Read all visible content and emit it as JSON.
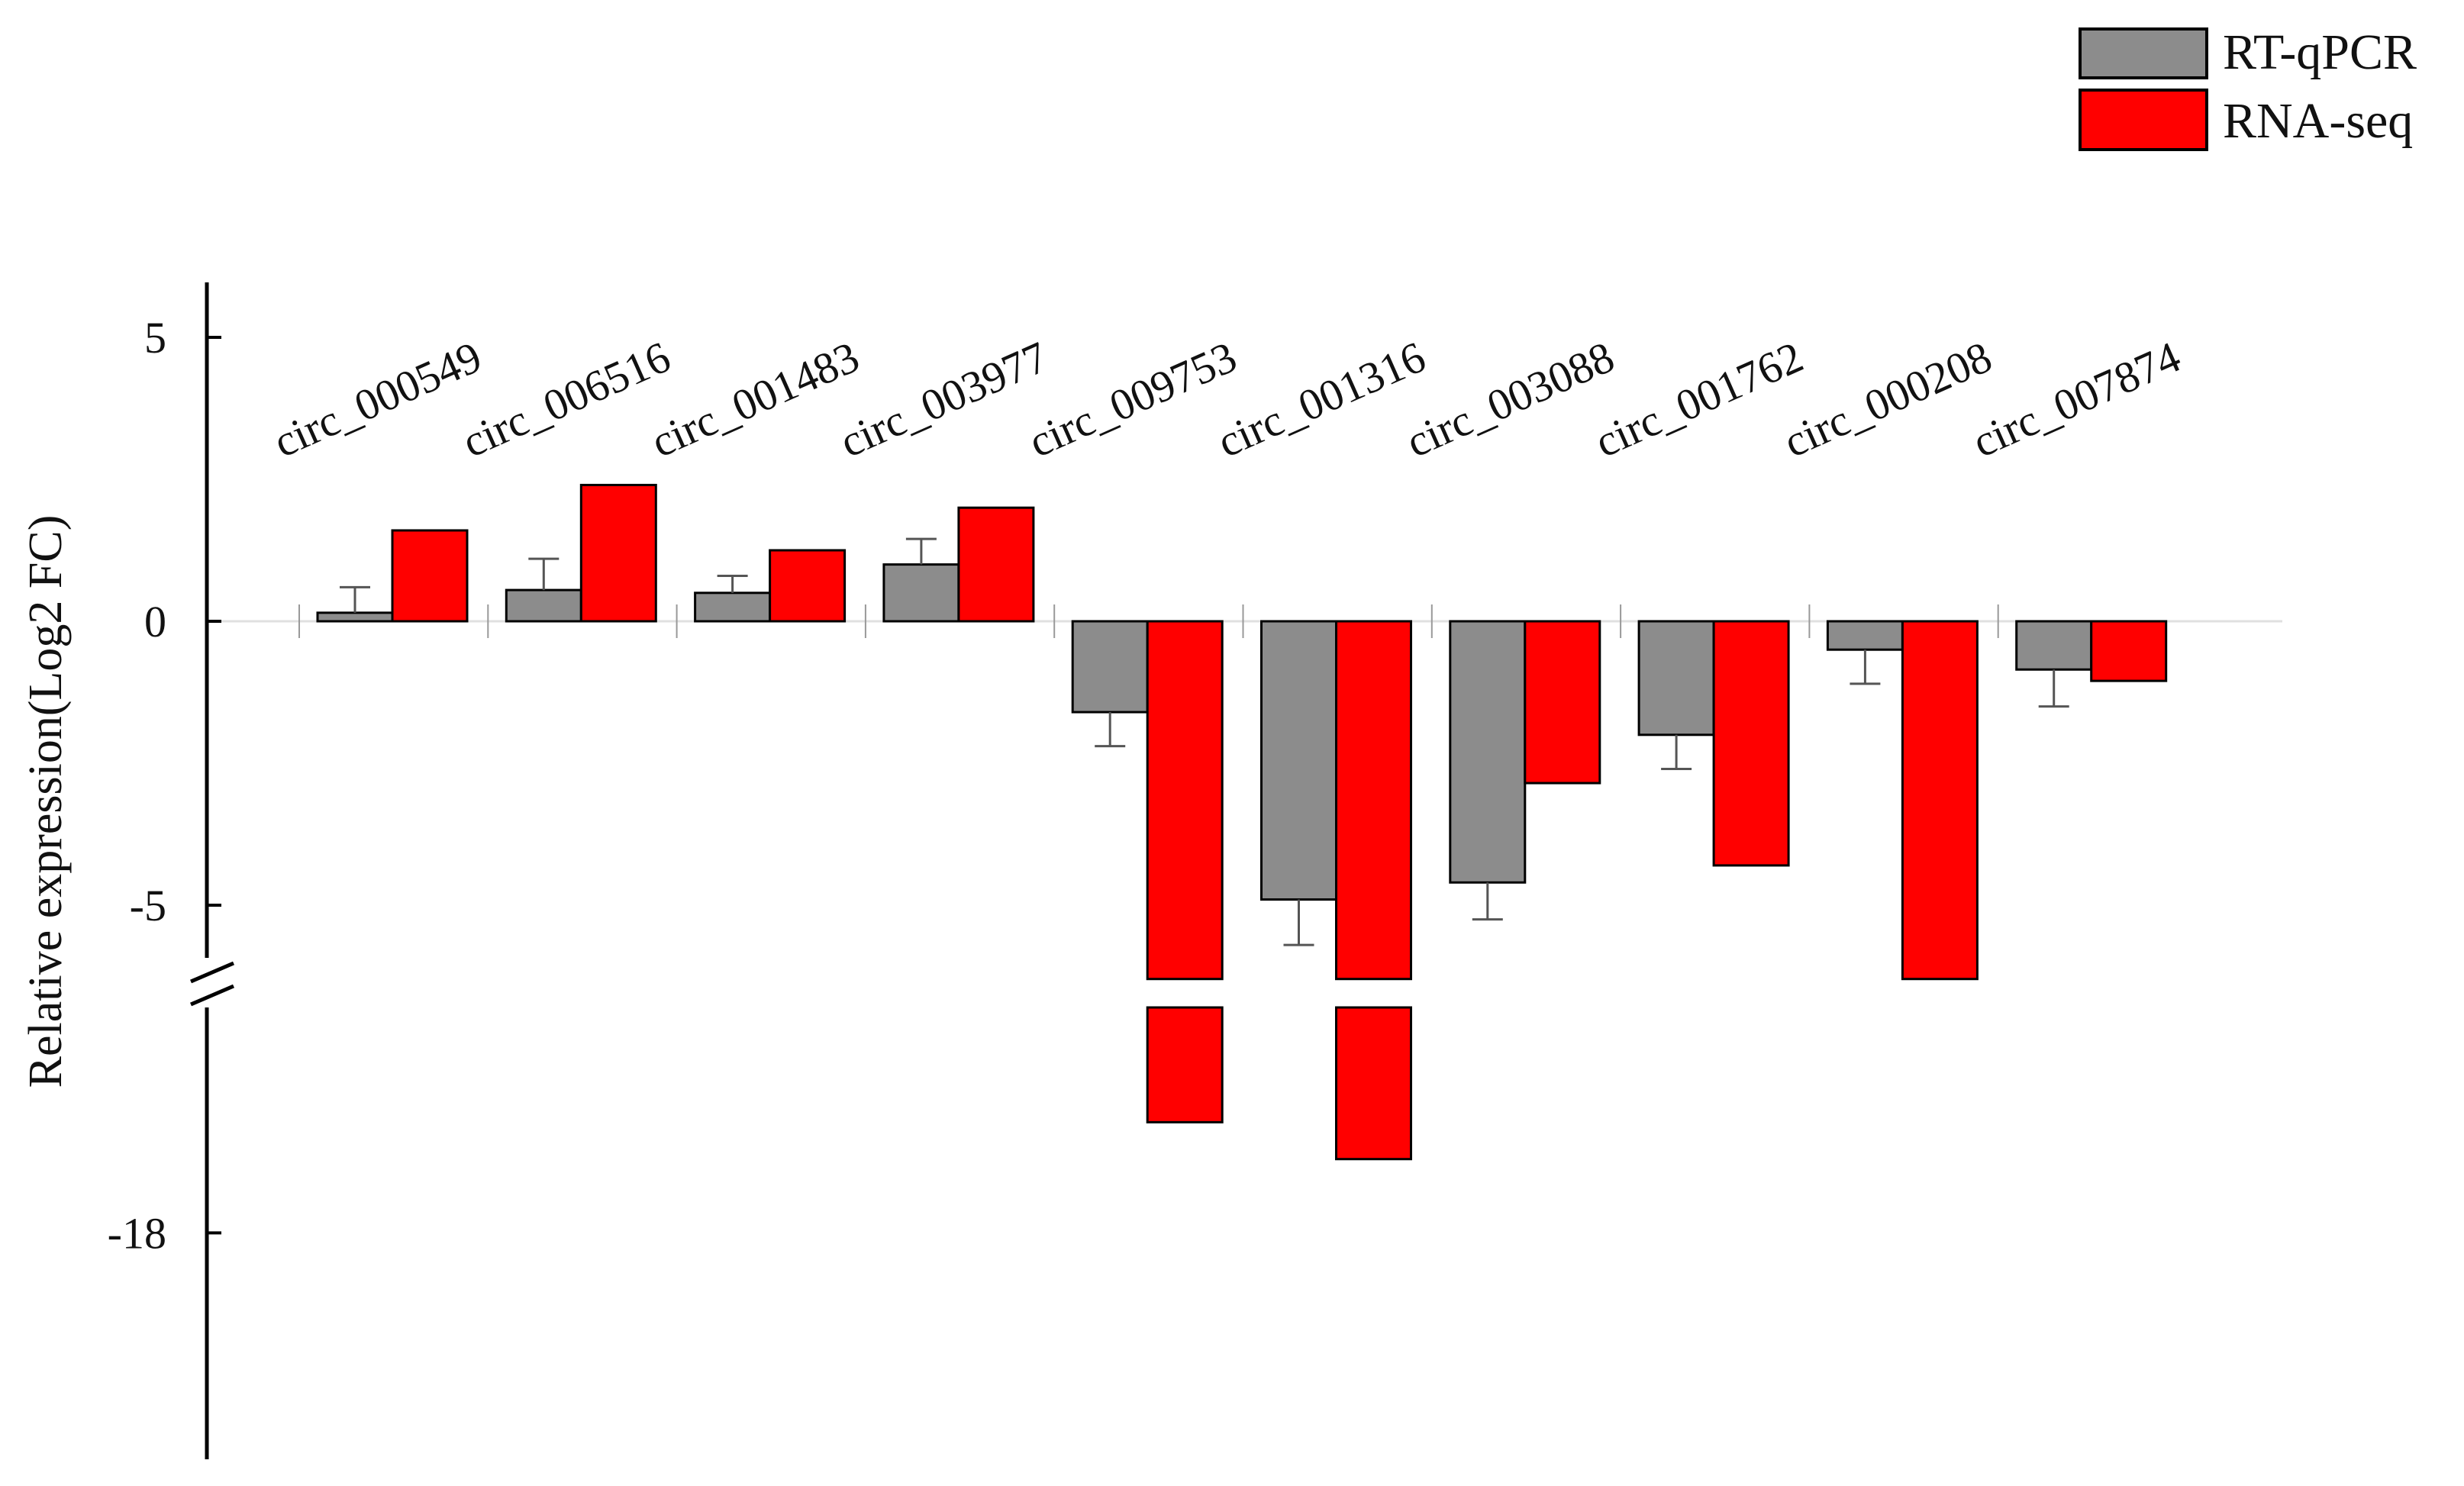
{
  "chart_data": {
    "type": "bar",
    "ylabel": "Relative expression(Log2 FC)",
    "y_tick_labels": [
      "5",
      "0",
      "-5",
      "-18"
    ],
    "y_axis_break": [
      -6.3,
      -12.5
    ],
    "categories": [
      "circ_000549",
      "circ_006516",
      "circ_001483",
      "circ_003977",
      "circ_009753",
      "circ_001316",
      "circ_003088",
      "circ_001762",
      "circ_000208",
      "circ_007874"
    ],
    "series": [
      {
        "name": "RT-qPCR",
        "color": "#8c8c8c",
        "values": [
          0.15,
          0.55,
          0.5,
          1.0,
          -1.6,
          -4.9,
          -4.6,
          -2.0,
          -0.5,
          -0.85
        ],
        "errors": [
          0.45,
          0.55,
          0.3,
          0.45,
          0.6,
          0.8,
          0.65,
          0.6,
          0.6,
          0.65
        ]
      },
      {
        "name": "RNA-seq",
        "color": "#ff0000",
        "values": [
          1.6,
          2.4,
          1.25,
          2.0,
          -15.3,
          -16.2,
          -2.85,
          -4.3,
          -6.3,
          -1.05
        ]
      }
    ],
    "legend_position": "top-right",
    "ylim": [
      -20.5,
      6
    ]
  }
}
